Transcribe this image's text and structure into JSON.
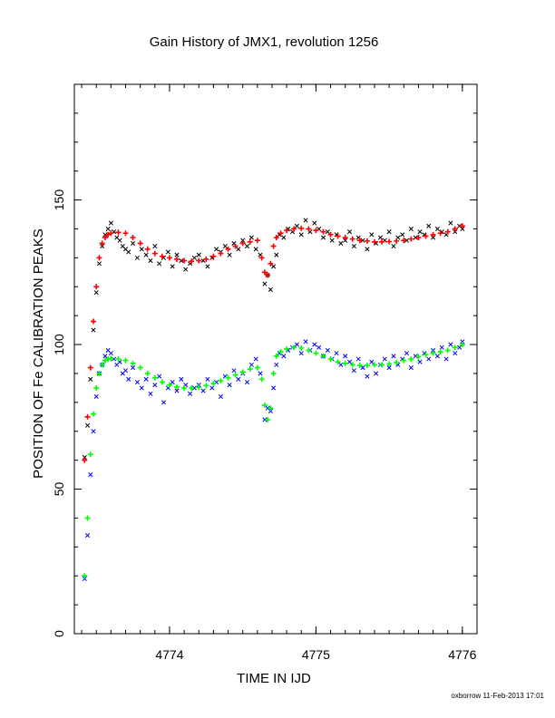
{
  "chart_data": {
    "type": "scatter",
    "title": "Gain History of JMX1, revolution 1256",
    "xlabel": "TIME IN IJD",
    "ylabel": "POSITION OF Fe CALIBRATION PEAKS",
    "xlim": [
      4773.35,
      4776.1
    ],
    "ylim": [
      0,
      190
    ],
    "x_ticks": [
      4774,
      4775,
      4776
    ],
    "y_ticks": [
      0,
      50,
      100,
      150
    ],
    "grid": false,
    "series": [
      {
        "role": "measured-upper",
        "marker": "x",
        "color": "#000000",
        "x": [
          4773.42,
          4773.44,
          4773.46,
          4773.48,
          4773.5,
          4773.52,
          4773.54,
          4773.56,
          4773.58,
          4773.6,
          4773.62,
          4773.64,
          4773.66,
          4773.68,
          4773.7,
          4773.72,
          4773.75,
          4773.78,
          4773.81,
          4773.84,
          4773.87,
          4773.9,
          4773.93,
          4773.96,
          4773.99,
          4774.02,
          4774.05,
          4774.08,
          4774.11,
          4774.14,
          4774.17,
          4774.2,
          4774.23,
          4774.26,
          4774.29,
          4774.32,
          4774.35,
          4774.38,
          4774.41,
          4774.44,
          4774.47,
          4774.5,
          4774.53,
          4774.56,
          4774.59,
          4774.62,
          4774.65,
          4774.67,
          4774.69,
          4774.71,
          4774.73,
          4774.75,
          4774.78,
          4774.81,
          4774.84,
          4774.87,
          4774.9,
          4774.93,
          4774.96,
          4774.99,
          4775.02,
          4775.05,
          4775.08,
          4775.11,
          4775.14,
          4775.17,
          4775.2,
          4775.23,
          4775.26,
          4775.29,
          4775.32,
          4775.35,
          4775.38,
          4775.41,
          4775.44,
          4775.47,
          4775.5,
          4775.53,
          4775.56,
          4775.59,
          4775.62,
          4775.65,
          4775.68,
          4775.71,
          4775.74,
          4775.77,
          4775.8,
          4775.83,
          4775.86,
          4775.89,
          4775.92,
          4775.95,
          4775.98,
          4776.0
        ],
        "y": [
          61,
          72,
          88,
          105,
          118,
          128,
          134,
          138,
          140,
          142,
          139,
          137,
          136,
          134,
          133,
          132,
          135,
          130,
          133,
          131,
          129,
          134,
          128,
          130,
          132,
          127,
          131,
          129,
          126,
          128,
          130,
          131,
          129,
          127,
          130,
          133,
          132,
          134,
          131,
          135,
          133,
          136,
          134,
          137,
          133,
          131,
          121,
          124,
          119,
          127,
          131,
          138,
          137,
          140,
          139,
          141,
          138,
          143,
          139,
          142,
          140,
          137,
          139,
          136,
          138,
          135,
          136,
          139,
          134,
          137,
          136,
          133,
          138,
          135,
          137,
          136,
          139,
          134,
          137,
          138,
          136,
          140,
          137,
          139,
          138,
          141,
          137,
          140,
          139,
          138,
          142,
          139,
          141,
          140
        ]
      },
      {
        "role": "fit-upper",
        "marker": "+",
        "color": "#ff0000",
        "x": [
          4773.42,
          4773.44,
          4773.46,
          4773.48,
          4773.5,
          4773.52,
          4773.54,
          4773.56,
          4773.58,
          4773.6,
          4773.65,
          4773.7,
          4773.75,
          4773.8,
          4773.85,
          4773.9,
          4773.95,
          4774.0,
          4774.05,
          4774.1,
          4774.15,
          4774.2,
          4774.25,
          4774.3,
          4774.35,
          4774.4,
          4774.45,
          4774.5,
          4774.55,
          4774.6,
          4774.63,
          4774.65,
          4774.67,
          4774.69,
          4774.71,
          4774.73,
          4774.76,
          4774.8,
          4774.85,
          4774.9,
          4774.95,
          4775.0,
          4775.05,
          4775.1,
          4775.15,
          4775.2,
          4775.25,
          4775.3,
          4775.35,
          4775.4,
          4775.45,
          4775.5,
          4775.55,
          4775.6,
          4775.65,
          4775.7,
          4775.75,
          4775.8,
          4775.85,
          4775.9,
          4775.95,
          4776.0
        ],
        "y": [
          60,
          75,
          92,
          108,
          120,
          130,
          135,
          137,
          138,
          138.5,
          138.8,
          138.5,
          137,
          135,
          133,
          131.5,
          130.5,
          130,
          129.5,
          129,
          128.8,
          129,
          129.5,
          130.5,
          131.5,
          133,
          134,
          135,
          135.5,
          136,
          130,
          125,
          124,
          128,
          134,
          137,
          138.5,
          139.5,
          140,
          140.2,
          140,
          139.5,
          139,
          138,
          137.5,
          137,
          136.5,
          136,
          135.8,
          135.5,
          135.5,
          135.6,
          135.8,
          136,
          136.5,
          137,
          137.5,
          138,
          138.5,
          139,
          140,
          141
        ]
      },
      {
        "role": "measured-lower",
        "marker": "x",
        "color": "#0000ff",
        "x": [
          4773.42,
          4773.44,
          4773.46,
          4773.48,
          4773.5,
          4773.52,
          4773.54,
          4773.56,
          4773.58,
          4773.6,
          4773.62,
          4773.64,
          4773.66,
          4773.68,
          4773.7,
          4773.72,
          4773.75,
          4773.78,
          4773.81,
          4773.84,
          4773.87,
          4773.9,
          4773.93,
          4773.96,
          4773.99,
          4774.02,
          4774.05,
          4774.08,
          4774.11,
          4774.14,
          4774.17,
          4774.2,
          4774.23,
          4774.26,
          4774.29,
          4774.32,
          4774.35,
          4774.38,
          4774.41,
          4774.44,
          4774.47,
          4774.5,
          4774.53,
          4774.56,
          4774.59,
          4774.62,
          4774.65,
          4774.67,
          4774.69,
          4774.71,
          4774.73,
          4774.75,
          4774.78,
          4774.81,
          4774.84,
          4774.87,
          4774.9,
          4774.93,
          4774.96,
          4774.99,
          4775.02,
          4775.05,
          4775.08,
          4775.11,
          4775.14,
          4775.17,
          4775.2,
          4775.23,
          4775.26,
          4775.29,
          4775.32,
          4775.35,
          4775.38,
          4775.41,
          4775.44,
          4775.47,
          4775.5,
          4775.53,
          4775.56,
          4775.59,
          4775.62,
          4775.65,
          4775.68,
          4775.71,
          4775.74,
          4775.77,
          4775.8,
          4775.83,
          4775.86,
          4775.89,
          4775.92,
          4775.95,
          4775.98,
          4776.0
        ],
        "y": [
          19,
          34,
          55,
          70,
          82,
          90,
          93,
          96,
          98,
          97,
          95,
          93,
          94,
          90,
          91,
          88,
          92,
          87,
          85,
          88,
          83,
          86,
          89,
          80,
          85,
          87,
          84,
          88,
          86,
          83,
          85,
          86,
          84,
          88,
          85,
          87,
          82,
          89,
          86,
          91,
          88,
          90,
          87,
          93,
          95,
          90,
          74,
          78,
          77,
          85,
          93,
          97,
          96,
          98,
          99,
          100,
          97,
          101,
          98,
          100,
          99,
          96,
          98,
          95,
          97,
          93,
          96,
          94,
          91,
          95,
          92,
          89,
          94,
          90,
          93,
          95,
          92,
          96,
          93,
          95,
          97,
          92,
          96,
          94,
          97,
          95,
          98,
          96,
          99,
          95,
          100,
          97,
          99,
          101
        ]
      },
      {
        "role": "fit-lower",
        "marker": "+",
        "color": "#00ff00",
        "x": [
          4773.42,
          4773.44,
          4773.46,
          4773.48,
          4773.5,
          4773.52,
          4773.54,
          4773.56,
          4773.58,
          4773.6,
          4773.65,
          4773.7,
          4773.75,
          4773.8,
          4773.85,
          4773.9,
          4773.95,
          4774.0,
          4774.05,
          4774.1,
          4774.15,
          4774.2,
          4774.25,
          4774.3,
          4774.35,
          4774.4,
          4774.45,
          4774.5,
          4774.55,
          4774.6,
          4774.63,
          4774.65,
          4774.67,
          4774.69,
          4774.71,
          4774.73,
          4774.76,
          4774.8,
          4774.85,
          4774.9,
          4774.95,
          4775.0,
          4775.05,
          4775.1,
          4775.15,
          4775.2,
          4775.25,
          4775.3,
          4775.35,
          4775.4,
          4775.45,
          4775.5,
          4775.55,
          4775.6,
          4775.65,
          4775.7,
          4775.75,
          4775.8,
          4775.85,
          4775.9,
          4775.95,
          4776.0
        ],
        "y": [
          20,
          40,
          62,
          76,
          85,
          90,
          93,
          94.5,
          95,
          95.2,
          95,
          94.5,
          93.5,
          92,
          90,
          88.5,
          87,
          86,
          85.3,
          85,
          85,
          85.2,
          85.8,
          86.5,
          87.5,
          88.5,
          89.5,
          90.5,
          91.5,
          92,
          88,
          79,
          74,
          78,
          90,
          96,
          97.5,
          98.5,
          99,
          98.8,
          98,
          97,
          96,
          95,
          94,
          93.5,
          93,
          92.8,
          92.8,
          93,
          93,
          93.3,
          93.8,
          94.5,
          95,
          95.8,
          96.5,
          97,
          97.5,
          98,
          99,
          100
        ]
      }
    ],
    "footer": "oxborrow 11-Feb-2013 17:01"
  }
}
